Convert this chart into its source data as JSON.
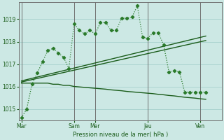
{
  "bg_color": "#cce8e4",
  "grid_color": "#aad4d0",
  "line_color_dark": "#1a5c1a",
  "line_color_med": "#2a7a2a",
  "xlabel": "Pression niveau de la mer( hPa )",
  "ylabel_ticks": [
    1015,
    1016,
    1017,
    1018,
    1019
  ],
  "xlabels": [
    "Mar",
    "Sam",
    "Mer",
    "Jeu",
    "Ven"
  ],
  "xtick_pos": [
    0,
    60,
    84,
    144,
    204
  ],
  "day_lines": [
    0,
    60,
    84,
    144,
    204
  ],
  "ymin": 1014.5,
  "ymax": 1019.75,
  "xmin": -3,
  "xmax": 228,
  "series_main_x": [
    0,
    6,
    12,
    18,
    24,
    30,
    36,
    42,
    48,
    54,
    60,
    66,
    72,
    78,
    84,
    90,
    96,
    102,
    108,
    114,
    120,
    126,
    132,
    138,
    144,
    150,
    156,
    162,
    168,
    174,
    180,
    186,
    192,
    198,
    204,
    210
  ],
  "series_main_y": [
    1014.6,
    1015.0,
    1016.1,
    1016.6,
    1017.1,
    1017.6,
    1017.7,
    1017.5,
    1017.3,
    1016.8,
    1018.8,
    1018.5,
    1018.35,
    1018.5,
    1018.35,
    1018.85,
    1018.85,
    1018.5,
    1018.5,
    1019.05,
    1019.05,
    1019.1,
    1019.6,
    1018.2,
    1018.15,
    1018.4,
    1018.4,
    1017.85,
    1016.65,
    1016.7,
    1016.65,
    1015.75,
    1015.75,
    1015.75,
    1015.75,
    1015.75
  ],
  "series_lo_x": [
    0,
    6,
    12,
    18,
    24,
    30,
    36,
    42,
    48,
    54,
    60,
    66,
    72,
    78,
    84,
    90,
    96,
    102,
    108,
    114,
    120,
    126,
    132,
    138,
    144,
    150,
    156,
    162,
    168,
    174,
    180,
    186,
    192,
    198,
    204,
    210
  ],
  "series_lo_y": [
    1016.15,
    1016.15,
    1016.15,
    1016.15,
    1016.15,
    1016.15,
    1016.1,
    1016.1,
    1016.05,
    1016.05,
    1016.0,
    1015.98,
    1015.96,
    1015.94,
    1015.92,
    1015.9,
    1015.88,
    1015.85,
    1015.83,
    1015.81,
    1015.78,
    1015.76,
    1015.74,
    1015.72,
    1015.7,
    1015.68,
    1015.65,
    1015.63,
    1015.6,
    1015.58,
    1015.55,
    1015.52,
    1015.5,
    1015.48,
    1015.45,
    1015.43
  ],
  "series_trend1_x": [
    0,
    210
  ],
  "series_trend1_y": [
    1016.2,
    1018.05
  ],
  "series_trend2_x": [
    0,
    210
  ],
  "series_trend2_y": [
    1016.25,
    1018.25
  ]
}
